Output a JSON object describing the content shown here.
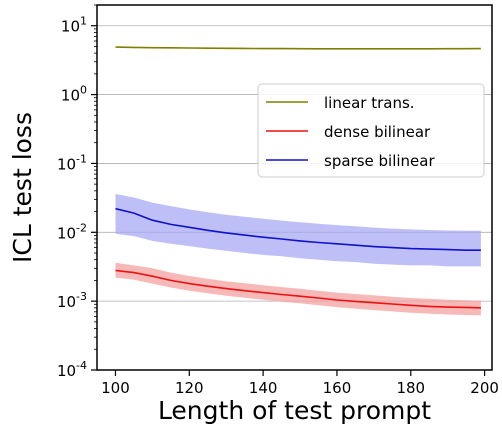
{
  "chart_data": {
    "type": "line",
    "title": "",
    "xlabel": "Length of test prompt",
    "ylabel": "ICL test loss",
    "xlim": [
      95,
      202
    ],
    "ylim": [
      0.0001,
      20
    ],
    "yscale": "log",
    "grid": {
      "y": true,
      "x": false
    },
    "x_ticks": [
      100,
      120,
      140,
      160,
      180,
      200
    ],
    "x_tick_labels": [
      "100",
      "120",
      "140",
      "160",
      "180",
      "200"
    ],
    "y_ticks": [
      0.0001,
      0.001,
      0.01,
      0.1,
      1,
      10
    ],
    "y_tick_labels": [
      {
        "base": "10",
        "exp": "-4"
      },
      {
        "base": "10",
        "exp": "-3"
      },
      {
        "base": "10",
        "exp": "-2"
      },
      {
        "base": "10",
        "exp": "-1"
      },
      {
        "base": "10",
        "exp": "0"
      },
      {
        "base": "10",
        "exp": "1"
      }
    ],
    "legend_position": "right",
    "x": [
      100,
      105,
      110,
      115,
      120,
      125,
      130,
      135,
      140,
      145,
      150,
      155,
      160,
      165,
      170,
      175,
      180,
      185,
      190,
      195,
      199
    ],
    "series": [
      {
        "name": "linear trans.",
        "color": "#808000",
        "values": [
          4.9,
          4.85,
          4.8,
          4.78,
          4.75,
          4.72,
          4.7,
          4.68,
          4.66,
          4.65,
          4.64,
          4.63,
          4.62,
          4.62,
          4.62,
          4.62,
          4.63,
          4.63,
          4.64,
          4.64,
          4.65
        ]
      },
      {
        "name": "dense bilinear",
        "color": "#ee1111",
        "band_color": "#f4a0a0",
        "values": [
          0.0028,
          0.0026,
          0.0023,
          0.002,
          0.0018,
          0.00165,
          0.00152,
          0.00142,
          0.00133,
          0.00125,
          0.00118,
          0.00111,
          0.00104,
          0.00099,
          0.00095,
          0.00091,
          0.00087,
          0.00084,
          0.00082,
          0.00081,
          0.0008
        ],
        "lower": [
          0.0022,
          0.00205,
          0.0018,
          0.00158,
          0.00142,
          0.0013,
          0.0012,
          0.00112,
          0.00105,
          0.00098,
          0.00093,
          0.00087,
          0.00082,
          0.00078,
          0.00074,
          0.00071,
          0.00068,
          0.00066,
          0.00064,
          0.00063,
          0.00062
        ],
        "upper": [
          0.0036,
          0.0033,
          0.003,
          0.0026,
          0.00232,
          0.00212,
          0.00195,
          0.00182,
          0.0017,
          0.0016,
          0.00151,
          0.00142,
          0.00133,
          0.00127,
          0.00121,
          0.00116,
          0.00111,
          0.00108,
          0.00105,
          0.00103,
          0.00102
        ]
      },
      {
        "name": "sparse bilinear",
        "color": "#1111cc",
        "band_color": "#aaaaf4",
        "values": [
          0.022,
          0.019,
          0.015,
          0.013,
          0.0118,
          0.0107,
          0.0098,
          0.0091,
          0.0085,
          0.008,
          0.0075,
          0.0071,
          0.0068,
          0.0065,
          0.0062,
          0.006,
          0.0058,
          0.0057,
          0.0056,
          0.0055,
          0.0055
        ],
        "lower": [
          0.0095,
          0.0088,
          0.0075,
          0.0068,
          0.0063,
          0.0058,
          0.0054,
          0.005,
          0.0047,
          0.0045,
          0.0042,
          0.004,
          0.0038,
          0.0037,
          0.0035,
          0.0034,
          0.0033,
          0.0033,
          0.0032,
          0.0032,
          0.0032
        ],
        "upper": [
          0.036,
          0.032,
          0.027,
          0.024,
          0.0215,
          0.0195,
          0.018,
          0.0168,
          0.0157,
          0.0148,
          0.014,
          0.0133,
          0.0127,
          0.0122,
          0.0117,
          0.0113,
          0.011,
          0.0108,
          0.0106,
          0.0105,
          0.0105
        ]
      }
    ]
  }
}
